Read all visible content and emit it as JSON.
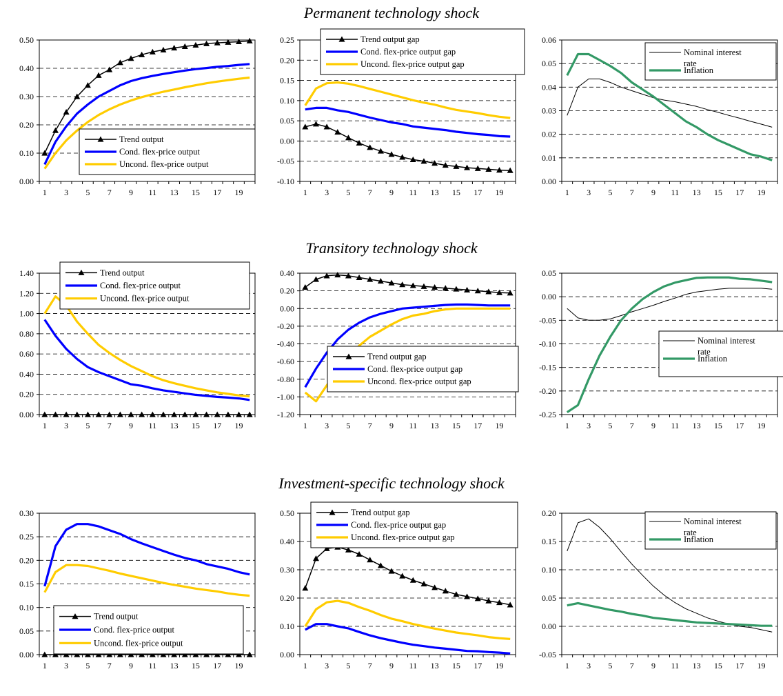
{
  "row_titles": [
    "Permanent technology shock",
    "Transitory technology shock",
    "Investment-specific technology shock"
  ],
  "colors": {
    "trend": "#000000",
    "cond": "#0000ff",
    "uncond": "#ffcc00",
    "inflation": "#339966",
    "nominal_rate": "#000000"
  },
  "chart_data": [
    {
      "type": "line",
      "x": [
        1,
        2,
        3,
        4,
        5,
        6,
        7,
        8,
        9,
        10,
        11,
        12,
        13,
        14,
        15,
        16,
        17,
        18,
        19,
        20
      ],
      "x_tick_labels": [
        "1",
        "3",
        "5",
        "7",
        "9",
        "11",
        "13",
        "15",
        "17",
        "19"
      ],
      "ylim": [
        0,
        0.5
      ],
      "y_tick_labels": [
        "0.00",
        "0.10",
        "0.20",
        "0.30",
        "0.40",
        "0.50"
      ],
      "grid": "horizontal dashed",
      "legend_position": "lower-right",
      "series": [
        {
          "name": "Trend output",
          "color": "#000000",
          "marker": "triangle",
          "values": [
            0.1,
            0.18,
            0.245,
            0.3,
            0.34,
            0.375,
            0.395,
            0.42,
            0.435,
            0.448,
            0.458,
            0.465,
            0.472,
            0.477,
            0.482,
            0.487,
            0.49,
            0.492,
            0.494,
            0.497
          ]
        },
        {
          "name": "Cond. flex-price output",
          "color": "#0000ff",
          "values": [
            0.06,
            0.14,
            0.195,
            0.24,
            0.272,
            0.3,
            0.32,
            0.34,
            0.355,
            0.365,
            0.373,
            0.38,
            0.386,
            0.392,
            0.397,
            0.401,
            0.405,
            0.408,
            0.412,
            0.415
          ]
        },
        {
          "name": "Uncond. flex-price output",
          "color": "#ffcc00",
          "values": [
            0.045,
            0.1,
            0.145,
            0.18,
            0.21,
            0.235,
            0.255,
            0.272,
            0.286,
            0.298,
            0.308,
            0.317,
            0.325,
            0.333,
            0.34,
            0.347,
            0.353,
            0.358,
            0.363,
            0.367
          ]
        }
      ]
    },
    {
      "type": "line",
      "x": [
        1,
        2,
        3,
        4,
        5,
        6,
        7,
        8,
        9,
        10,
        11,
        12,
        13,
        14,
        15,
        16,
        17,
        18,
        19,
        20
      ],
      "x_tick_labels": [
        "1",
        "3",
        "5",
        "7",
        "9",
        "11",
        "13",
        "15",
        "17",
        "19"
      ],
      "ylim": [
        -0.1,
        0.25
      ],
      "y_tick_labels": [
        "-0.10",
        "-0.05",
        "0.00",
        "0.05",
        "0.10",
        "0.15",
        "0.20",
        "0.25"
      ],
      "grid": "horizontal dashed",
      "legend_position": "top",
      "series": [
        {
          "name": "Trend output gap",
          "color": "#000000",
          "marker": "triangle",
          "values": [
            0.035,
            0.042,
            0.035,
            0.022,
            0.008,
            -0.005,
            -0.016,
            -0.025,
            -0.033,
            -0.04,
            -0.046,
            -0.05,
            -0.055,
            -0.06,
            -0.063,
            -0.066,
            -0.068,
            -0.07,
            -0.072,
            -0.073
          ]
        },
        {
          "name": "Cond. flex-price output gap",
          "color": "#0000ff",
          "values": [
            0.078,
            0.082,
            0.082,
            0.076,
            0.072,
            0.065,
            0.058,
            0.052,
            0.046,
            0.042,
            0.036,
            0.033,
            0.03,
            0.027,
            0.023,
            0.02,
            0.017,
            0.015,
            0.012,
            0.011
          ]
        },
        {
          "name": "Uncond. flex-price output gap",
          "color": "#ffcc00",
          "values": [
            0.088,
            0.13,
            0.143,
            0.145,
            0.142,
            0.136,
            0.129,
            0.122,
            0.115,
            0.108,
            0.101,
            0.095,
            0.09,
            0.083,
            0.077,
            0.073,
            0.069,
            0.064,
            0.06,
            0.057
          ]
        }
      ]
    },
    {
      "type": "line",
      "x": [
        1,
        2,
        3,
        4,
        5,
        6,
        7,
        8,
        9,
        10,
        11,
        12,
        13,
        14,
        15,
        16,
        17,
        18,
        19,
        20
      ],
      "x_tick_labels": [
        "1",
        "3",
        "5",
        "7",
        "9",
        "11",
        "13",
        "15",
        "17",
        "19"
      ],
      "ylim": [
        0,
        0.06
      ],
      "y_tick_labels": [
        "0.00",
        "0.01",
        "0.02",
        "0.03",
        "0.04",
        "0.05",
        "0.06"
      ],
      "grid": "horizontal dashed",
      "legend_position": "top-right",
      "series": [
        {
          "name": "Nominal interest rate",
          "color": "#000000",
          "values": [
            0.028,
            0.04,
            0.0435,
            0.0435,
            0.042,
            0.04,
            0.0385,
            0.037,
            0.0355,
            0.0345,
            0.0338,
            0.0328,
            0.0318,
            0.0305,
            0.0293,
            0.028,
            0.0268,
            0.0255,
            0.0243,
            0.023
          ]
        },
        {
          "name": "Inflation",
          "color": "#339966",
          "values": [
            0.045,
            0.054,
            0.054,
            0.0515,
            0.049,
            0.046,
            0.042,
            0.039,
            0.036,
            0.0325,
            0.029,
            0.0255,
            0.023,
            0.02,
            0.0175,
            0.0155,
            0.0135,
            0.0115,
            0.0105,
            0.009
          ]
        }
      ]
    },
    {
      "type": "line",
      "x": [
        1,
        2,
        3,
        4,
        5,
        6,
        7,
        8,
        9,
        10,
        11,
        12,
        13,
        14,
        15,
        16,
        17,
        18,
        19,
        20
      ],
      "x_tick_labels": [
        "1",
        "3",
        "5",
        "7",
        "9",
        "11",
        "13",
        "15",
        "17",
        "19"
      ],
      "ylim": [
        0,
        1.4
      ],
      "y_tick_labels": [
        "0.00",
        "0.20",
        "0.40",
        "0.60",
        "0.80",
        "1.00",
        "1.20",
        "1.40"
      ],
      "grid": "horizontal dashed",
      "legend_position": "top",
      "series": [
        {
          "name": "Trend output",
          "color": "#000000",
          "marker": "triangle",
          "values": [
            0,
            0,
            0,
            0,
            0,
            0,
            0,
            0,
            0,
            0,
            0,
            0,
            0,
            0,
            0,
            0,
            0,
            0,
            0,
            0
          ]
        },
        {
          "name": "Cond. flex-price output",
          "color": "#0000ff",
          "values": [
            0.94,
            0.78,
            0.65,
            0.55,
            0.47,
            0.42,
            0.38,
            0.34,
            0.3,
            0.285,
            0.26,
            0.24,
            0.225,
            0.21,
            0.195,
            0.185,
            0.175,
            0.168,
            0.16,
            0.145
          ]
        },
        {
          "name": "Uncond. flex-price output",
          "color": "#ffcc00",
          "values": [
            1.0,
            1.17,
            1.08,
            0.92,
            0.8,
            0.69,
            0.61,
            0.54,
            0.48,
            0.43,
            0.38,
            0.34,
            0.31,
            0.285,
            0.26,
            0.24,
            0.22,
            0.205,
            0.19,
            0.18
          ]
        }
      ]
    },
    {
      "type": "line",
      "x": [
        1,
        2,
        3,
        4,
        5,
        6,
        7,
        8,
        9,
        10,
        11,
        12,
        13,
        14,
        15,
        16,
        17,
        18,
        19,
        20
      ],
      "x_tick_labels": [
        "1",
        "3",
        "5",
        "7",
        "9",
        "11",
        "13",
        "15",
        "17",
        "19"
      ],
      "ylim": [
        -1.2,
        0.4
      ],
      "y_tick_labels": [
        "-1.20",
        "-1.00",
        "-0.80",
        "-0.60",
        "-0.40",
        "-0.20",
        "0.00",
        "0.20",
        "0.40"
      ],
      "grid": "horizontal dashed",
      "legend_position": "bottom-right",
      "series": [
        {
          "name": "Trend output gap",
          "color": "#000000",
          "marker": "triangle",
          "values": [
            0.24,
            0.33,
            0.37,
            0.38,
            0.37,
            0.35,
            0.33,
            0.31,
            0.29,
            0.27,
            0.26,
            0.25,
            0.24,
            0.23,
            0.22,
            0.21,
            0.2,
            0.19,
            0.18,
            0.175
          ]
        },
        {
          "name": "Cond. flex-price output gap",
          "color": "#0000ff",
          "values": [
            -0.89,
            -0.68,
            -0.5,
            -0.35,
            -0.24,
            -0.16,
            -0.1,
            -0.06,
            -0.03,
            0.0,
            0.01,
            0.02,
            0.03,
            0.04,
            0.045,
            0.045,
            0.04,
            0.035,
            0.035,
            0.035
          ]
        },
        {
          "name": "Uncond. flex-price output gap",
          "color": "#ffcc00",
          "values": [
            -0.95,
            -1.05,
            -0.87,
            -0.7,
            -0.55,
            -0.42,
            -0.32,
            -0.25,
            -0.18,
            -0.12,
            -0.08,
            -0.06,
            -0.03,
            -0.01,
            0.0,
            0.0,
            0.0,
            0.0,
            0.0,
            0.0
          ]
        }
      ]
    },
    {
      "type": "line",
      "x": [
        1,
        2,
        3,
        4,
        5,
        6,
        7,
        8,
        9,
        10,
        11,
        12,
        13,
        14,
        15,
        16,
        17,
        18,
        19,
        20
      ],
      "x_tick_labels": [
        "1",
        "3",
        "5",
        "7",
        "9",
        "11",
        "13",
        "15",
        "17",
        "19"
      ],
      "ylim": [
        -0.25,
        0.05
      ],
      "y_tick_labels": [
        "-0.25",
        "-0.20",
        "-0.15",
        "-0.10",
        "-0.05",
        "0.00",
        "0.05"
      ],
      "grid": "horizontal dashed",
      "legend_position": "right",
      "series": [
        {
          "name": "Nominal interest rate",
          "color": "#000000",
          "values": [
            -0.025,
            -0.045,
            -0.05,
            -0.05,
            -0.047,
            -0.04,
            -0.032,
            -0.025,
            -0.018,
            -0.01,
            -0.003,
            0.005,
            0.01,
            0.013,
            0.016,
            0.018,
            0.018,
            0.018,
            0.018,
            0.016
          ]
        },
        {
          "name": "Inflation",
          "color": "#339966",
          "values": [
            -0.245,
            -0.23,
            -0.175,
            -0.125,
            -0.085,
            -0.05,
            -0.025,
            -0.005,
            0.01,
            0.022,
            0.03,
            0.035,
            0.04,
            0.041,
            0.041,
            0.041,
            0.038,
            0.037,
            0.034,
            0.031
          ]
        }
      ]
    },
    {
      "type": "line",
      "x": [
        1,
        2,
        3,
        4,
        5,
        6,
        7,
        8,
        9,
        10,
        11,
        12,
        13,
        14,
        15,
        16,
        17,
        18,
        19,
        20
      ],
      "x_tick_labels": [
        "1",
        "3",
        "5",
        "7",
        "9",
        "11",
        "13",
        "15",
        "17",
        "19"
      ],
      "ylim": [
        0,
        0.3
      ],
      "y_tick_labels": [
        "0.00",
        "0.05",
        "0.10",
        "0.15",
        "0.20",
        "0.25",
        "0.30"
      ],
      "grid": "horizontal dashed",
      "legend_position": "bottom",
      "series": [
        {
          "name": "Trend output",
          "color": "#000000",
          "marker": "triangle",
          "values": [
            0,
            0,
            0,
            0,
            0,
            0,
            0,
            0,
            0,
            0,
            0,
            0,
            0,
            0,
            0,
            0,
            0,
            0,
            0,
            0
          ]
        },
        {
          "name": "Cond. flex-price output",
          "color": "#0000ff",
          "values": [
            0.145,
            0.23,
            0.265,
            0.277,
            0.277,
            0.272,
            0.264,
            0.256,
            0.245,
            0.236,
            0.228,
            0.22,
            0.212,
            0.205,
            0.2,
            0.192,
            0.187,
            0.182,
            0.175,
            0.17
          ]
        },
        {
          "name": "Uncond. flex-price output",
          "color": "#ffcc00",
          "values": [
            0.132,
            0.175,
            0.19,
            0.19,
            0.188,
            0.183,
            0.178,
            0.172,
            0.167,
            0.162,
            0.157,
            0.152,
            0.148,
            0.144,
            0.14,
            0.137,
            0.134,
            0.13,
            0.127,
            0.125
          ]
        }
      ]
    },
    {
      "type": "line",
      "x": [
        1,
        2,
        3,
        4,
        5,
        6,
        7,
        8,
        9,
        10,
        11,
        12,
        13,
        14,
        15,
        16,
        17,
        18,
        19,
        20
      ],
      "x_tick_labels": [
        "1",
        "3",
        "5",
        "7",
        "9",
        "11",
        "13",
        "15",
        "17",
        "19"
      ],
      "ylim": [
        0,
        0.5
      ],
      "y_tick_labels": [
        "0.00",
        "0.10",
        "0.20",
        "0.30",
        "0.40",
        "0.50"
      ],
      "grid": "horizontal dashed",
      "legend_position": "top",
      "series": [
        {
          "name": "Trend output gap",
          "color": "#000000",
          "marker": "triangle",
          "values": [
            0.235,
            0.34,
            0.375,
            0.38,
            0.37,
            0.355,
            0.335,
            0.315,
            0.295,
            0.278,
            0.263,
            0.25,
            0.237,
            0.225,
            0.213,
            0.205,
            0.198,
            0.19,
            0.184,
            0.176
          ]
        },
        {
          "name": "Cond. flex-price output gap",
          "color": "#0000ff",
          "values": [
            0.088,
            0.108,
            0.108,
            0.1,
            0.093,
            0.08,
            0.068,
            0.058,
            0.05,
            0.042,
            0.035,
            0.03,
            0.025,
            0.021,
            0.017,
            0.013,
            0.012,
            0.009,
            0.007,
            0.004
          ]
        },
        {
          "name": "Uncond. flex-price output gap",
          "color": "#ffcc00",
          "values": [
            0.1,
            0.16,
            0.185,
            0.19,
            0.183,
            0.168,
            0.155,
            0.14,
            0.127,
            0.118,
            0.108,
            0.1,
            0.092,
            0.085,
            0.078,
            0.073,
            0.068,
            0.062,
            0.058,
            0.055
          ]
        }
      ]
    },
    {
      "type": "line",
      "x": [
        1,
        2,
        3,
        4,
        5,
        6,
        7,
        8,
        9,
        10,
        11,
        12,
        13,
        14,
        15,
        16,
        17,
        18,
        19,
        20
      ],
      "x_tick_labels": [
        "1",
        "3",
        "5",
        "7",
        "9",
        "11",
        "13",
        "15",
        "17",
        "19"
      ],
      "ylim": [
        -0.05,
        0.2
      ],
      "y_tick_labels": [
        "-0.05",
        "0.00",
        "0.05",
        "0.10",
        "0.15",
        "0.20"
      ],
      "grid": "horizontal dashed",
      "legend_position": "top-right",
      "series": [
        {
          "name": "Nominal interest rate",
          "color": "#000000",
          "values": [
            0.133,
            0.183,
            0.19,
            0.175,
            0.155,
            0.132,
            0.11,
            0.09,
            0.071,
            0.055,
            0.042,
            0.031,
            0.023,
            0.015,
            0.009,
            0.004,
            0.0,
            -0.002,
            -0.006,
            -0.01
          ]
        },
        {
          "name": "Inflation",
          "color": "#339966",
          "values": [
            0.037,
            0.041,
            0.037,
            0.033,
            0.029,
            0.026,
            0.022,
            0.019,
            0.015,
            0.013,
            0.011,
            0.009,
            0.007,
            0.006,
            0.005,
            0.004,
            0.003,
            0.002,
            0.001,
            0.001
          ]
        }
      ]
    }
  ]
}
